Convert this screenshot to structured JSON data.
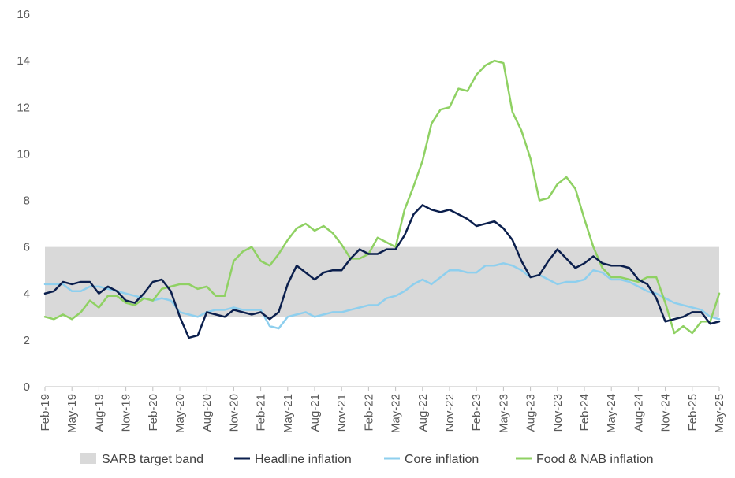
{
  "chart_data": {
    "type": "line",
    "title": "",
    "xlabel": "",
    "ylabel": "",
    "ylim": [
      0,
      16
    ],
    "yticks": [
      "0",
      "2",
      "4",
      "6",
      "8",
      "10",
      "12",
      "14",
      "16"
    ],
    "grid": false,
    "legend_position": "bottom",
    "band": {
      "name": "SARB target band",
      "low": 3,
      "high": 6,
      "color": "#d9d9d9"
    },
    "x_tick_labels": [
      "Feb-19",
      "May-19",
      "Aug-19",
      "Nov-19",
      "Feb-20",
      "May-20",
      "Aug-20",
      "Nov-20",
      "Feb-21",
      "May-21",
      "Aug-21",
      "Nov-21",
      "Feb-22",
      "May-22",
      "Aug-22",
      "Nov-22",
      "Feb-23",
      "May-23",
      "Aug-23",
      "Nov-23",
      "Feb-24",
      "May-24",
      "Aug-24",
      "Nov-24",
      "Feb-25",
      "May-25"
    ],
    "x": [
      "2019-02",
      "2019-03",
      "2019-04",
      "2019-05",
      "2019-06",
      "2019-07",
      "2019-08",
      "2019-09",
      "2019-10",
      "2019-11",
      "2019-12",
      "2020-01",
      "2020-02",
      "2020-03",
      "2020-04",
      "2020-05",
      "2020-06",
      "2020-07",
      "2020-08",
      "2020-09",
      "2020-10",
      "2020-11",
      "2020-12",
      "2021-01",
      "2021-02",
      "2021-03",
      "2021-04",
      "2021-05",
      "2021-06",
      "2021-07",
      "2021-08",
      "2021-09",
      "2021-10",
      "2021-11",
      "2021-12",
      "2022-01",
      "2022-02",
      "2022-03",
      "2022-04",
      "2022-05",
      "2022-06",
      "2022-07",
      "2022-08",
      "2022-09",
      "2022-10",
      "2022-11",
      "2022-12",
      "2023-01",
      "2023-02",
      "2023-03",
      "2023-04",
      "2023-05",
      "2023-06",
      "2023-07",
      "2023-08",
      "2023-09",
      "2023-10",
      "2023-11",
      "2023-12",
      "2024-01",
      "2024-02",
      "2024-03",
      "2024-04",
      "2024-05",
      "2024-06",
      "2024-07",
      "2024-08",
      "2024-09",
      "2024-10",
      "2024-11",
      "2024-12",
      "2025-01",
      "2025-02",
      "2025-03",
      "2025-04",
      "2025-05"
    ],
    "series": [
      {
        "name": "Headline inflation",
        "color": "#0b1f4d",
        "values": [
          4.0,
          4.1,
          4.5,
          4.4,
          4.5,
          4.5,
          4.0,
          4.3,
          4.1,
          3.7,
          3.6,
          4.0,
          4.5,
          4.6,
          4.1,
          3.0,
          2.1,
          2.2,
          3.2,
          3.1,
          3.0,
          3.3,
          3.2,
          3.1,
          3.2,
          2.9,
          3.2,
          4.4,
          5.2,
          4.9,
          4.6,
          4.9,
          5.0,
          5.0,
          5.5,
          5.9,
          5.7,
          5.7,
          5.9,
          5.9,
          6.5,
          7.4,
          7.8,
          7.6,
          7.5,
          7.6,
          7.4,
          7.2,
          6.9,
          7.0,
          7.1,
          6.8,
          6.3,
          5.4,
          4.7,
          4.8,
          5.4,
          5.9,
          5.5,
          5.1,
          5.3,
          5.6,
          5.3,
          5.2,
          5.2,
          5.1,
          4.6,
          4.4,
          3.8,
          2.8,
          2.9,
          3.0,
          3.2,
          3.2,
          2.7,
          2.8
        ]
      },
      {
        "name": "Core inflation",
        "color": "#8ecfee",
        "values": [
          4.4,
          4.4,
          4.4,
          4.1,
          4.1,
          4.3,
          4.3,
          4.2,
          4.1,
          4.0,
          3.9,
          3.8,
          3.7,
          3.8,
          3.7,
          3.2,
          3.1,
          3.0,
          3.2,
          3.3,
          3.3,
          3.4,
          3.3,
          3.3,
          3.3,
          2.6,
          2.5,
          3.0,
          3.1,
          3.2,
          3.0,
          3.1,
          3.2,
          3.2,
          3.3,
          3.4,
          3.5,
          3.5,
          3.8,
          3.9,
          4.1,
          4.4,
          4.6,
          4.4,
          4.7,
          5.0,
          5.0,
          4.9,
          4.9,
          5.2,
          5.2,
          5.3,
          5.2,
          5.0,
          4.7,
          4.8,
          4.6,
          4.4,
          4.5,
          4.5,
          4.6,
          5.0,
          4.9,
          4.6,
          4.6,
          4.5,
          4.3,
          4.1,
          4.0,
          3.8,
          3.6,
          3.5,
          3.4,
          3.3,
          3.0,
          2.9
        ]
      },
      {
        "name": "Food & NAB inflation",
        "color": "#8fd163",
        "values": [
          3.0,
          2.9,
          3.1,
          2.9,
          3.2,
          3.7,
          3.4,
          3.9,
          3.9,
          3.6,
          3.5,
          3.8,
          3.7,
          4.2,
          4.3,
          4.4,
          4.4,
          4.2,
          4.3,
          3.9,
          3.9,
          5.4,
          5.8,
          6.0,
          5.4,
          5.2,
          5.7,
          6.3,
          6.8,
          7.0,
          6.7,
          6.9,
          6.6,
          6.1,
          5.5,
          5.5,
          5.7,
          6.4,
          6.2,
          6.0,
          7.6,
          8.6,
          9.7,
          11.3,
          11.9,
          12.0,
          12.8,
          12.7,
          13.4,
          13.8,
          14.0,
          13.9,
          11.8,
          11.0,
          9.8,
          8.0,
          8.1,
          8.7,
          9.0,
          8.5,
          7.2,
          6.0,
          5.1,
          4.7,
          4.7,
          4.6,
          4.5,
          4.7,
          4.7,
          3.6,
          2.3,
          2.6,
          2.3,
          2.8,
          2.8,
          4.0
        ]
      }
    ]
  }
}
